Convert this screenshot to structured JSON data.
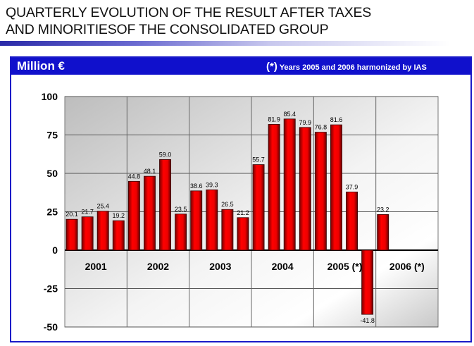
{
  "title_line1": "QUARTERLY EVOLUTION OF THE RESULT AFTER TAXES",
  "title_line2": "AND MINORITIESOF THE CONSOLIDATED GROUP",
  "header": {
    "unit": "Million €",
    "note_mark": "(*)",
    "note_text": "Years 2005 and 2006 harmonized by IAS"
  },
  "colors": {
    "bar": "#ee0000",
    "header": "#1010cc"
  },
  "chart_data": {
    "type": "bar",
    "title": "",
    "xlabel": "",
    "ylabel": "Million €",
    "ylim": [
      -50,
      100
    ],
    "yticks": [
      100,
      75,
      50,
      25,
      0,
      -25,
      -50
    ],
    "categories": [
      "2001",
      "2002",
      "2003",
      "2004",
      "2005 (*)",
      "2006 (*)"
    ],
    "quarters_per_category": 4,
    "values": [
      20.1,
      21.7,
      25.4,
      19.2,
      44.8,
      48.1,
      59.0,
      23.5,
      38.6,
      39.3,
      26.5,
      21.2,
      55.7,
      81.9,
      85.4,
      79.9,
      76.8,
      81.6,
      37.9,
      -41.8,
      23.2
    ],
    "labels": [
      "20.1",
      "21.7",
      "25.4",
      "19.2",
      "44.8",
      "48.1",
      "59.0",
      "23.5",
      "38.6",
      "39.3",
      "26.5",
      "21.2",
      "55.7",
      "81.9",
      "85.4",
      "79.9",
      "76.8",
      "81.6",
      "37.9",
      "-41.8",
      "23.2"
    ],
    "grid": true
  }
}
